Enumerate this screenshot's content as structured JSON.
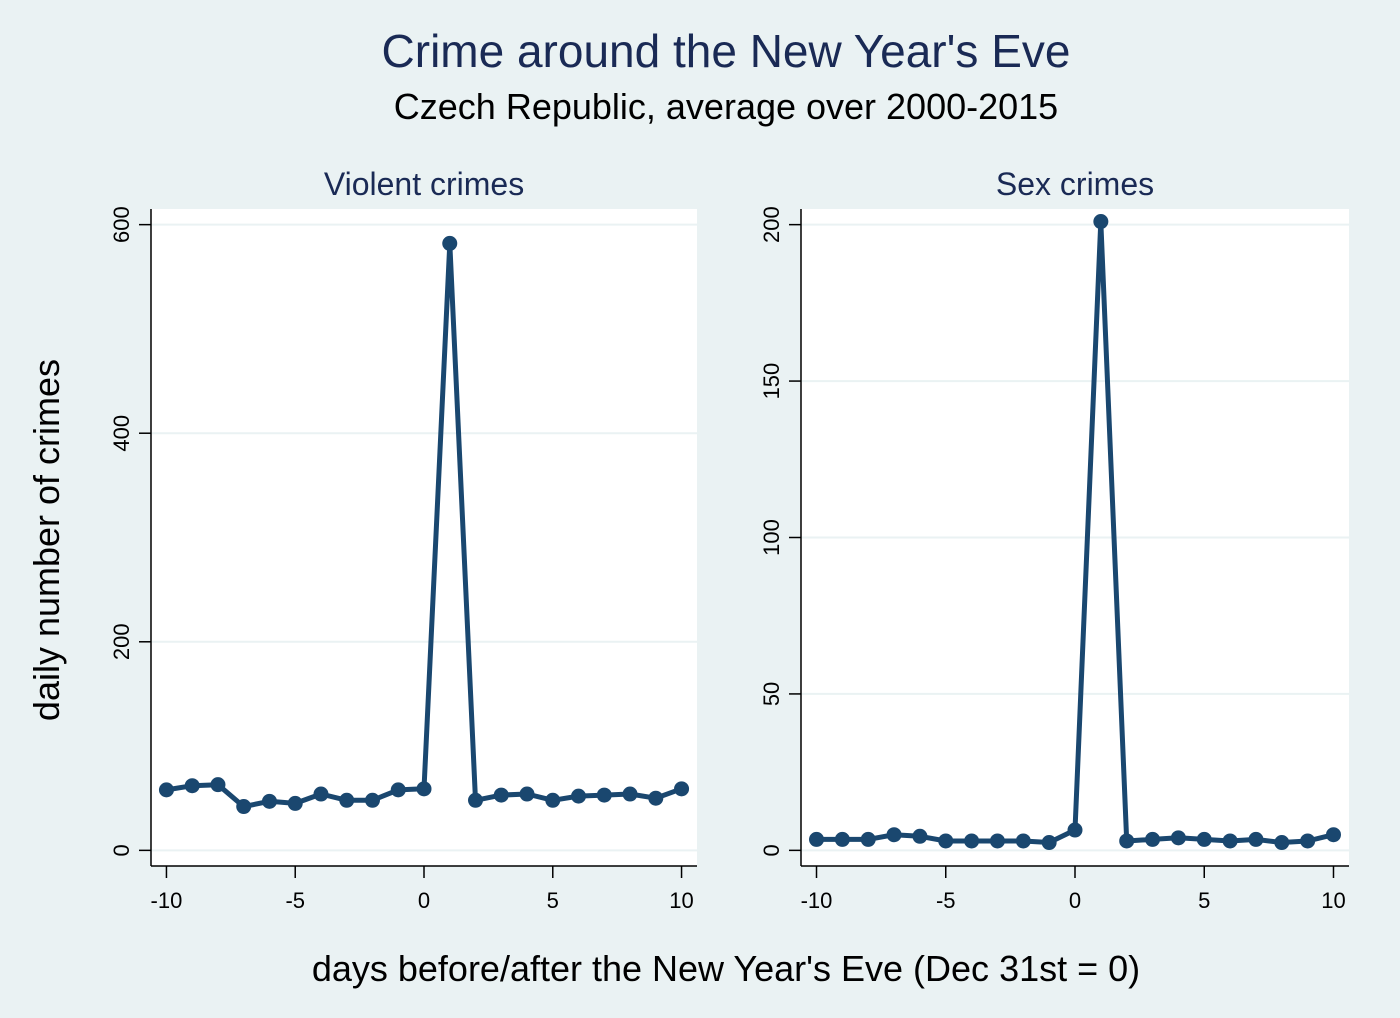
{
  "title": "Crime around the New Year's Eve",
  "subtitle": "Czech Republic, average over 2000-2015",
  "xlabel": "days before/after the New Year's Eve (Dec 31st = 0)",
  "ylabel": "daily number of crimes",
  "colors": {
    "background": "#eaf2f3",
    "plot_area": "#ffffff",
    "series": "#1a476f",
    "grid": "#eaf2f3",
    "title": "#1a2a55"
  },
  "chart_data": [
    {
      "type": "line",
      "title": "Violent crimes",
      "x": [
        -10,
        -9,
        -8,
        -7,
        -6,
        -5,
        -4,
        -3,
        -2,
        -1,
        0,
        1,
        2,
        3,
        4,
        5,
        6,
        7,
        8,
        9,
        10
      ],
      "values": [
        58,
        62,
        63,
        42,
        47,
        45,
        54,
        48,
        48,
        58,
        59,
        582,
        48,
        53,
        54,
        48,
        52,
        53,
        54,
        50,
        59
      ],
      "xlim": [
        -10.6,
        10.6
      ],
      "ylim": [
        -15,
        615
      ],
      "xticks": [
        -10,
        -5,
        0,
        5,
        10
      ],
      "yticks": [
        0,
        200,
        400,
        600
      ],
      "grid": true,
      "markers": true
    },
    {
      "type": "line",
      "title": "Sex crimes",
      "x": [
        -10,
        -9,
        -8,
        -7,
        -6,
        -5,
        -4,
        -3,
        -2,
        -1,
        0,
        1,
        2,
        3,
        4,
        5,
        6,
        7,
        8,
        9,
        10
      ],
      "values": [
        3.5,
        3.5,
        3.5,
        5,
        4.5,
        3,
        3,
        3,
        3,
        2.5,
        6.5,
        201,
        3,
        3.5,
        4,
        3.5,
        3,
        3.5,
        2.5,
        3,
        5
      ],
      "xlim": [
        -10.6,
        10.6
      ],
      "ylim": [
        -5,
        205
      ],
      "xticks": [
        -10,
        -5,
        0,
        5,
        10
      ],
      "yticks": [
        0,
        50,
        100,
        150,
        200
      ],
      "grid": true,
      "markers": true
    }
  ]
}
